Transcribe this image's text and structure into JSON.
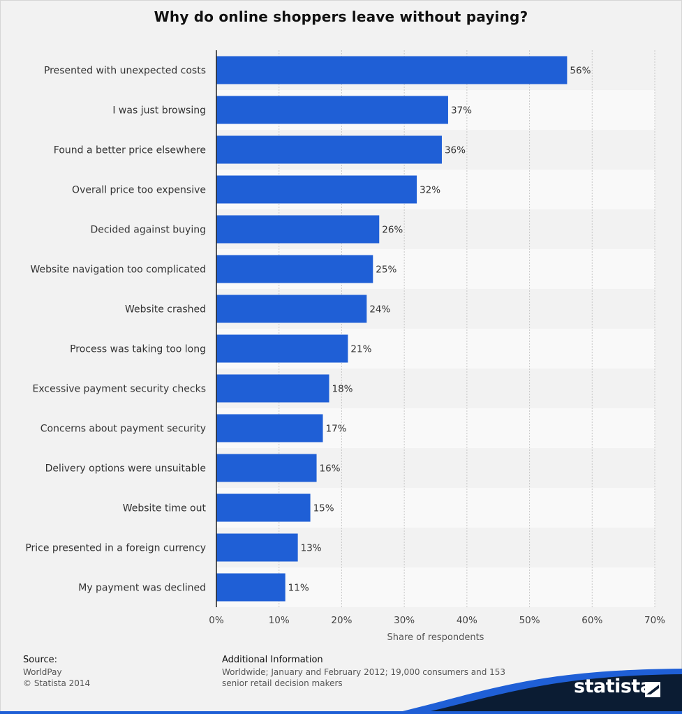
{
  "chart_data": {
    "type": "bar",
    "orientation": "horizontal",
    "title": "Why do online shoppers leave without paying?",
    "categories": [
      "Presented with unexpected costs",
      "I was just browsing",
      "Found a better price elsewhere",
      "Overall price too expensive",
      "Decided against buying",
      "Website navigation too complicated",
      "Website crashed",
      "Process was taking too long",
      "Excessive payment security checks",
      "Concerns about payment security",
      "Delivery options were unsuitable",
      "Website time out",
      "Price presented in a foreign currency",
      "My payment was declined"
    ],
    "values": [
      56,
      37,
      36,
      32,
      26,
      25,
      24,
      21,
      18,
      17,
      16,
      15,
      13,
      11
    ],
    "value_labels": [
      "56%",
      "37%",
      "36%",
      "32%",
      "26%",
      "25%",
      "24%",
      "21%",
      "18%",
      "17%",
      "16%",
      "15%",
      "13%",
      "11%"
    ],
    "xlabel": "Share of respondents",
    "ylabel": "",
    "xlim": [
      0,
      70
    ],
    "xticks": [
      "0%",
      "10%",
      "20%",
      "30%",
      "40%",
      "50%",
      "60%",
      "70%"
    ],
    "grid": true,
    "bar_color": "#1f5fd6"
  },
  "footer": {
    "source_head": "Source:",
    "source_line1": "WorldPay",
    "source_line2": "© Statista 2014",
    "info_head": "Additional Information",
    "info_text": "Worldwide; January and February 2012; 19,000 consumers and 153 senior retail decision makers"
  },
  "brand": {
    "logo": "statista",
    "logo_icon": "statista-mark-icon",
    "colors": {
      "dark": "#0b1c33",
      "accent": "#1f5fd6"
    }
  }
}
